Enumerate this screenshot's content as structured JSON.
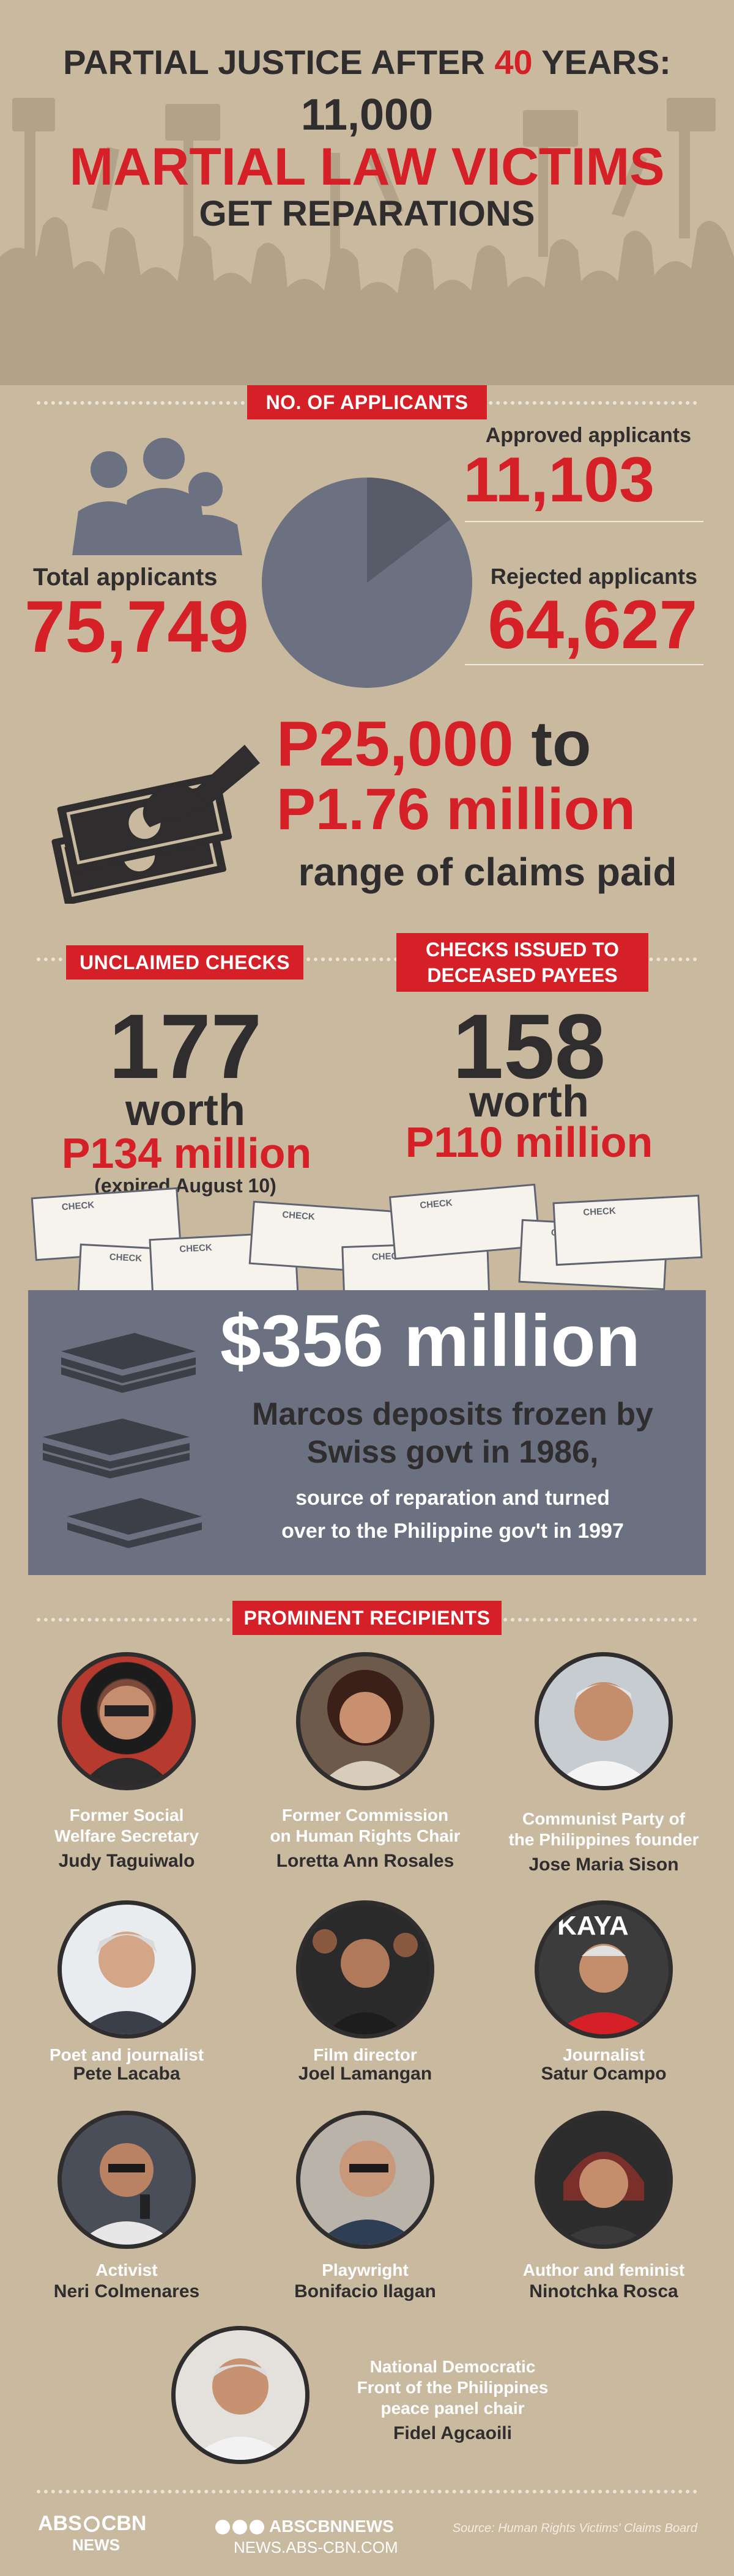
{
  "header": {
    "line1_a": "PARTIAL JUSTICE AFTER ",
    "line1_num": "40",
    "line1_b": " YEARS:",
    "line2": "11,000",
    "line3": "MARTIAL LAW VICTIMS",
    "line4": "GET REPARATIONS"
  },
  "applicants": {
    "tag": "NO. OF APPLICANTS",
    "approved_label": "Approved applicants",
    "approved_value": "11,103",
    "total_label": "Total applicants",
    "total_value": "75,749",
    "rejected_label": "Rejected applicants",
    "rejected_value": "64,627",
    "approved_share": 0.1466
  },
  "claims": {
    "low": "P25,000",
    "to": " to",
    "high": "P1.76 million",
    "caption": "range of claims paid"
  },
  "checks": {
    "unclaimed_tag": "UNCLAIMED CHECKS",
    "deceased_tag_1": "CHECKS ISSUED TO",
    "deceased_tag_2": "DECEASED PAYEES",
    "unclaimed_count": "177",
    "worth": "worth",
    "unclaimed_amount": "P134 million",
    "unclaimed_note": "(expired August 10)",
    "deceased_count": "158",
    "deceased_amount": "P110 million",
    "check_label": "CHECK"
  },
  "deposit": {
    "amount": "$356 million",
    "line1": "Marcos deposits frozen by",
    "line2": "Swiss govt in 1986,",
    "line3": "source of reparation and turned",
    "line4": "over to the Philippine gov't in 1997"
  },
  "recipients": {
    "tag": "PROMINENT RECIPIENTS",
    "items": [
      {
        "title1": "Former Social",
        "title2": "Welfare Secretary",
        "name": "Judy Taguiwalo"
      },
      {
        "title1": "Former Commission",
        "title2": "on Human Rights Chair",
        "name": "Loretta Ann Rosales"
      },
      {
        "title1": "Communist Party of",
        "title2": "the Philippines founder",
        "name": "Jose Maria Sison"
      },
      {
        "title1": "Poet and journalist",
        "title2": "",
        "name": "Pete Lacaba"
      },
      {
        "title1": "Film director",
        "title2": "",
        "name": "Joel Lamangan"
      },
      {
        "title1": "Journalist",
        "title2": "",
        "name": "Satur Ocampo"
      },
      {
        "title1": "Activist",
        "title2": "",
        "name": "Neri Colmenares"
      },
      {
        "title1": "Playwright",
        "title2": "",
        "name": "Bonifacio Ilagan"
      },
      {
        "title1": "Author and feminist",
        "title2": "",
        "name": "Ninotchka Rosca"
      }
    ],
    "last": {
      "title1": "National Democratic",
      "title2": "Front of the Philippines",
      "title3": "peace panel chair",
      "name": "Fidel Agcaoili"
    },
    "photo_banner_text": "KAYA"
  },
  "footer": {
    "logo_top": "ABS",
    "logo_cbn": "CBN",
    "logo_bottom": "NEWS",
    "social_handle": "ABSCBNNEWS",
    "site": "NEWS.ABS-CBN.COM",
    "source": "Source: Human Rights Victims' Claims Board"
  },
  "colors": {
    "background": "#c9b99f",
    "accent_red": "#d42026",
    "dark": "#2f2d2e",
    "slate": "#6b7180"
  }
}
